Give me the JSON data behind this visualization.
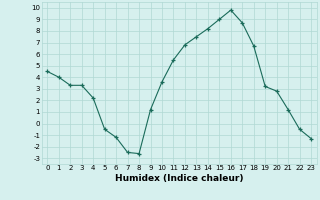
{
  "x": [
    0,
    1,
    2,
    3,
    4,
    5,
    6,
    7,
    8,
    9,
    10,
    11,
    12,
    13,
    14,
    15,
    16,
    17,
    18,
    19,
    20,
    21,
    22,
    23
  ],
  "y": [
    4.5,
    4.0,
    3.3,
    3.3,
    2.2,
    -0.5,
    -1.2,
    -2.5,
    -2.6,
    1.2,
    3.6,
    5.5,
    6.8,
    7.5,
    8.2,
    9.0,
    9.8,
    8.7,
    6.7,
    3.2,
    2.8,
    1.2,
    -0.5,
    -1.3
  ],
  "xlim": [
    -0.5,
    23.5
  ],
  "ylim": [
    -3.5,
    10.5
  ],
  "yticks": [
    -3,
    -2,
    -1,
    0,
    1,
    2,
    3,
    4,
    5,
    6,
    7,
    8,
    9,
    10
  ],
  "xticks": [
    0,
    1,
    2,
    3,
    4,
    5,
    6,
    7,
    8,
    9,
    10,
    11,
    12,
    13,
    14,
    15,
    16,
    17,
    18,
    19,
    20,
    21,
    22,
    23
  ],
  "xlabel": "Humidex (Indice chaleur)",
  "line_color": "#1a6b5a",
  "marker": "+",
  "bg_color": "#d6f0ee",
  "grid_color": "#b0d8d4",
  "tick_fontsize": 5,
  "label_fontsize": 6.5
}
